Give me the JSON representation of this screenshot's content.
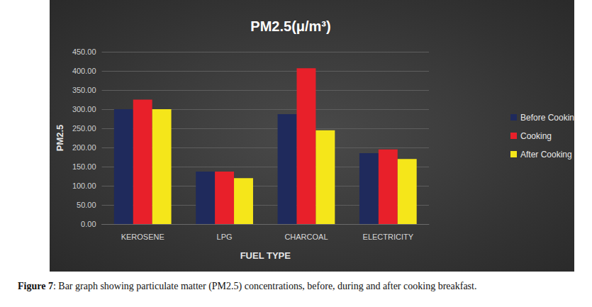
{
  "chart_data": {
    "type": "bar",
    "title": "PM2.5(μ/m³)",
    "x_label": "FUEL TYPE",
    "y_label": "PM2.5",
    "categories": [
      "KEROSENE",
      "LPG",
      "CHARCOAL",
      "ELECTRICITY"
    ],
    "series": [
      {
        "name": "Before Cooking",
        "color": "#1f2a5c",
        "values": [
          300,
          137,
          287,
          185
        ]
      },
      {
        "name": "Cooking",
        "color": "#e8202a",
        "values": [
          325,
          137,
          407,
          195
        ]
      },
      {
        "name": "After Cooking",
        "color": "#f5e61a",
        "values": [
          300,
          120,
          245,
          170
        ]
      }
    ],
    "ylim": [
      0,
      450
    ],
    "yticks": [
      {
        "value": 0,
        "label": "0.00"
      },
      {
        "value": 50,
        "label": "50.00"
      },
      {
        "value": 100,
        "label": "100.00"
      },
      {
        "value": 150,
        "label": "150.00"
      },
      {
        "value": 200,
        "label": "200.00"
      },
      {
        "value": 250,
        "label": "250.00"
      },
      {
        "value": 300,
        "label": "300.00"
      },
      {
        "value": 350,
        "label": "350.00"
      },
      {
        "value": 400,
        "label": "400.00"
      },
      {
        "value": 450,
        "label": "450.00"
      }
    ],
    "grid": true,
    "legend": "right"
  },
  "caption": {
    "label": "Figure 7",
    "text": ": Bar graph showing particulate matter (PM2.5) concentrations, before, during and after cooking breakfast."
  }
}
